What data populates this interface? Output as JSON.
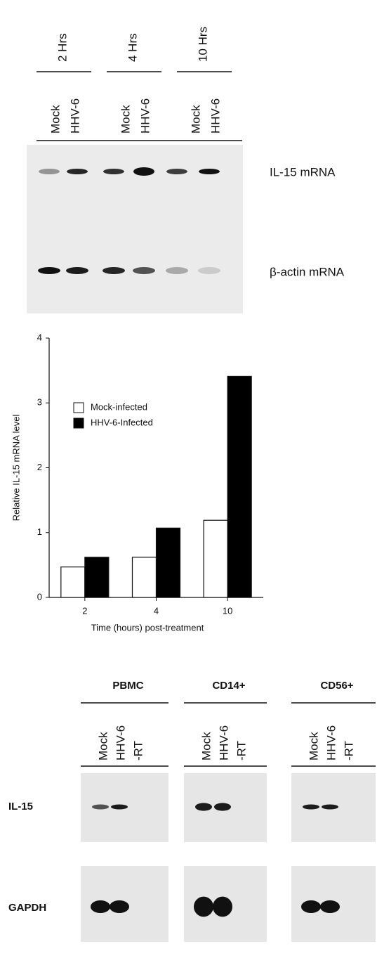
{
  "blot_a": {
    "time_points": [
      "2 Hrs",
      "4 Hrs",
      "10 Hrs"
    ],
    "lanes": [
      "Mock",
      "HHV-6"
    ],
    "bands": [
      "IL-15 mRNA",
      "β-actin mRNA"
    ]
  },
  "chart_data": {
    "type": "bar",
    "x_label": "Time (hours) post-treatment",
    "y_label": "Relative IL-15 mRNA level",
    "categories": [
      "2",
      "4",
      "10"
    ],
    "series": [
      {
        "name": "Mock-infected",
        "color": "#ffffff",
        "values": [
          0.47,
          0.62,
          1.19
        ]
      },
      {
        "name": "HHV-6-Infected",
        "color": "#000000",
        "values": [
          0.62,
          1.07,
          3.41
        ]
      }
    ],
    "ylim": [
      0,
      4
    ],
    "yticks": [
      0,
      1,
      2,
      3,
      4
    ],
    "legend": "upper left"
  },
  "blot_b": {
    "cells": [
      "PBMC",
      "CD14+",
      "CD56+"
    ],
    "lanes": [
      "Mock",
      "HHV-6",
      "-RT"
    ],
    "rows": [
      "IL-15",
      "GAPDH"
    ]
  }
}
